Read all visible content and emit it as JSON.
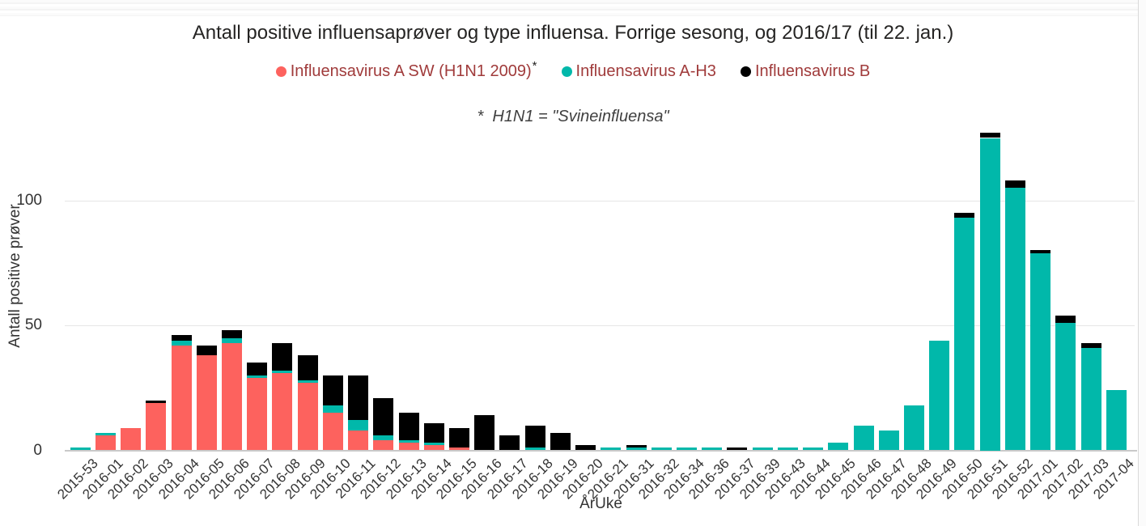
{
  "chart_data": {
    "type": "bar",
    "stacked": true,
    "title": "Antall positive influensaprøver og type influensa. Forrige sesong, og 2016/17 (til 22. jan.)",
    "note": "*  H1N1 = \"Svineinfluensa\"",
    "xlabel": "ÅrUke",
    "ylabel": "Antall positive prøver",
    "y_ticks": [
      0,
      50,
      100
    ],
    "ylim": [
      0,
      130
    ],
    "grid": "horizontal",
    "legend_position": "top",
    "legend_text_color": "#a03b3b",
    "categories": [
      "2015-53",
      "2016-01",
      "2016-02",
      "2016-03",
      "2016-04",
      "2016-05",
      "2016-06",
      "2016-07",
      "2016-08",
      "2016-09",
      "2016-10",
      "2016-11",
      "2016-12",
      "2016-13",
      "2016-14",
      "2016-15",
      "2016-16",
      "2016-17",
      "2016-18",
      "2016-19",
      "2016-20",
      "2016-21",
      "2016-31",
      "2016-32",
      "2016-34",
      "2016-36",
      "2016-37",
      "2016-39",
      "2016-43",
      "2016-44",
      "2016-45",
      "2016-46",
      "2016-47",
      "2016-48",
      "2016-49",
      "2016-50",
      "2016-51",
      "2016-52",
      "2017-01",
      "2017-02",
      "2017-03",
      "2017-04"
    ],
    "series": [
      {
        "name": "Influensavirus A SW (H1N1 2009)",
        "sup": "*",
        "color": "#FD625E",
        "values": [
          0,
          6,
          9,
          19,
          42,
          38,
          43,
          29,
          31,
          27,
          15,
          8,
          4,
          3,
          2,
          1,
          0,
          0,
          0,
          0,
          0,
          0,
          0,
          0,
          0,
          0,
          0,
          0,
          0,
          0,
          0,
          0,
          0,
          0,
          0,
          0,
          0,
          0,
          0,
          0,
          0,
          0
        ]
      },
      {
        "name": "Influensavirus A-H3",
        "sup": "",
        "color": "#01B8AA",
        "values": [
          1,
          1,
          0,
          0,
          2,
          0,
          2,
          1,
          1,
          1,
          3,
          4,
          2,
          1,
          1,
          0,
          0,
          0,
          1,
          0,
          0,
          1,
          1,
          1,
          1,
          1,
          0,
          1,
          1,
          1,
          3,
          10,
          8,
          18,
          44,
          93,
          125,
          105,
          79,
          51,
          41,
          24
        ]
      },
      {
        "name": "Influensavirus B",
        "sup": "",
        "color": "#000000",
        "values": [
          0,
          0,
          0,
          1,
          2,
          4,
          3,
          5,
          11,
          10,
          12,
          18,
          15,
          11,
          8,
          8,
          14,
          6,
          9,
          7,
          2,
          0,
          1,
          0,
          0,
          0,
          1,
          0,
          0,
          0,
          0,
          0,
          0,
          0,
          0,
          2,
          2,
          3,
          1,
          3,
          2,
          0
        ]
      }
    ]
  }
}
